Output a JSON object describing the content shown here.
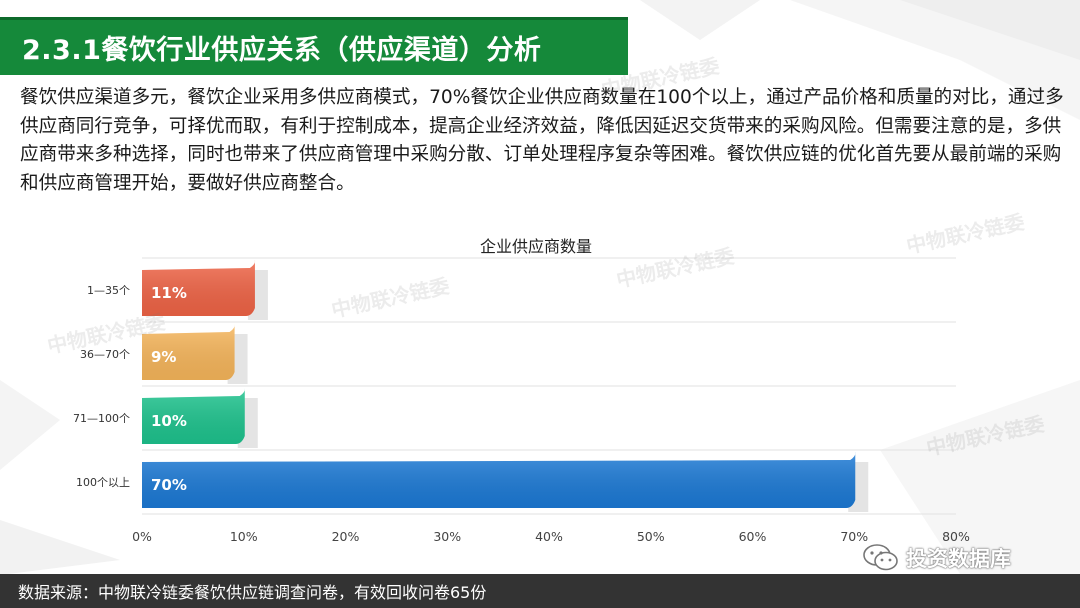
{
  "title": "2.3.1餐饮行业供应关系（供应渠道）分析",
  "intro": "餐饮供应渠道多元，餐饮企业采用多供应商模式，70%餐饮企业供应商数量在100个以上，通过产品价格和质量的对比，通过多供应商同行竞争，可择优而取，有利于控制成本，提高企业经济效益，降低因延迟交货带来的采购风险。但需要注意的是，多供应商带来多种选择，同时也带来了供应商管理中采购分散、订单处理程序复杂等困难。餐饮供应链的优化首先要从最前端的采购和供应商管理开始，要做好供应商整合。",
  "watermarks": [
    "中物联冷链委",
    "中物联冷链委",
    "中物联冷链委",
    "中物联冷链委",
    "中物联冷链委",
    "中物联冷链委"
  ],
  "footer": "数据来源：中物联冷链委餐饮供应链调查问卷，有效回收问卷65份",
  "brand": "投资数据库",
  "chart_data": {
    "type": "bar",
    "orientation": "horizontal",
    "title": "企业供应商数量",
    "categories": [
      "1—35个",
      "36—70个",
      "71—100个",
      "100个以上"
    ],
    "values": [
      11,
      9,
      10,
      70
    ],
    "data_labels": [
      "11%",
      "9%",
      "10%",
      "70%"
    ],
    "colors": [
      "#f06446",
      "#f7b65b",
      "#1ec48e",
      "#1c7ad6"
    ],
    "xlim": [
      0,
      80
    ],
    "xticks": [
      "0%",
      "10%",
      "20%",
      "30%",
      "40%",
      "50%",
      "60%",
      "70%",
      "80%"
    ],
    "grid": true,
    "legend": "none"
  }
}
